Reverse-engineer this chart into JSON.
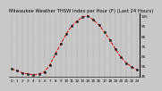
{
  "title": "Milwaukee Weather THSW Index per Hour (F) (Last 24 Hours)",
  "hours": [
    0,
    1,
    2,
    3,
    4,
    5,
    6,
    7,
    8,
    9,
    10,
    11,
    12,
    13,
    14,
    15,
    16,
    17,
    18,
    19,
    20,
    21,
    22,
    23
  ],
  "values": [
    52,
    50,
    48,
    47,
    46,
    47,
    49,
    56,
    67,
    77,
    87,
    95,
    100,
    104,
    105,
    101,
    96,
    89,
    81,
    72,
    64,
    58,
    54,
    51
  ],
  "line_color": "#dd0000",
  "marker_color": "#000000",
  "bg_color": "#c8c8c8",
  "plot_bg": "#c8c8c8",
  "grid_color": "#888888",
  "title_color": "#000000",
  "ylim": [
    44,
    108
  ],
  "yticks": [
    45,
    55,
    65,
    75,
    85,
    95,
    105
  ],
  "ytick_labels": [
    "45",
    "55",
    "65",
    "75",
    "85",
    "95",
    "105"
  ],
  "title_fontsize": 3.8,
  "xtick_fontsize": 3.0,
  "ytick_fontsize": 3.0,
  "xticks": [
    0,
    1,
    2,
    3,
    4,
    5,
    6,
    7,
    8,
    9,
    10,
    11,
    12,
    13,
    14,
    15,
    16,
    17,
    18,
    19,
    20,
    21,
    22,
    23
  ],
  "xtick_labels": [
    "0",
    "1",
    "2",
    "3",
    "4",
    "5",
    "6",
    "7",
    "8",
    "9",
    "10",
    "11",
    "12",
    "13",
    "14",
    "15",
    "16",
    "17",
    "18",
    "19",
    "20",
    "21",
    "22",
    "23"
  ]
}
